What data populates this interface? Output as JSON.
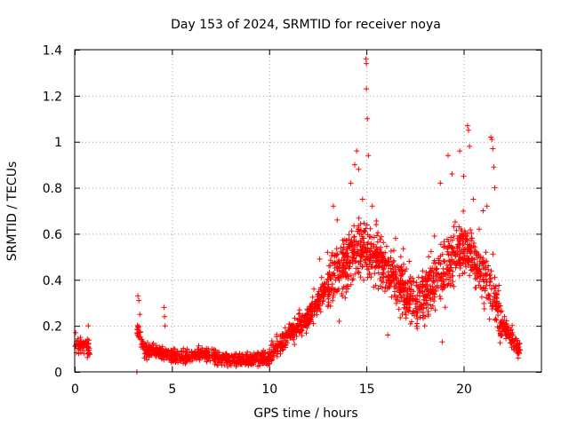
{
  "chart_data": {
    "type": "scatter",
    "title": "Day 153 of 2024, SRMTID for receiver noya",
    "xlabel": "GPS time / hours",
    "ylabel": "SRMTID / TECUs",
    "xlim": [
      0,
      24
    ],
    "ylim": [
      0,
      1.4
    ],
    "x_ticks": [
      0,
      5,
      10,
      15,
      20
    ],
    "x_tick_labels": [
      "0",
      "5",
      "10",
      "15",
      "20"
    ],
    "y_ticks": [
      0,
      0.2,
      0.4,
      0.6,
      0.8,
      1.0,
      1.2,
      1.4
    ],
    "y_tick_labels": [
      "0",
      "0.2",
      "0.4",
      "0.6",
      "0.8",
      "1",
      "1.2",
      "1.4"
    ],
    "grid": true,
    "marker": "+",
    "color": "#ff0000",
    "series": [
      {
        "name": "SRMTID",
        "profile": {
          "note": "Points sampled continuously between these (hour, SRMTID) anchor values; spread is the typical scatter around the profile",
          "segments": [
            {
              "x_start": 0.0,
              "x_end": 0.8,
              "anchors": [
                [
                  0.0,
                  0.12
                ],
                [
                  0.4,
                  0.11
                ],
                [
                  0.8,
                  0.1
                ]
              ],
              "spread": 0.035,
              "count": 60
            },
            {
              "x_start": 3.2,
              "x_end": 10.0,
              "anchors": [
                [
                  3.2,
                  0.2
                ],
                [
                  3.6,
                  0.09
                ],
                [
                  4.5,
                  0.08
                ],
                [
                  5.5,
                  0.06
                ],
                [
                  6.5,
                  0.08
                ],
                [
                  7.5,
                  0.06
                ],
                [
                  8.5,
                  0.05
                ],
                [
                  9.5,
                  0.06
                ],
                [
                  10.0,
                  0.05
                ]
              ],
              "spread": 0.03,
              "count": 650
            },
            {
              "x_start": 10.0,
              "x_end": 13.0,
              "anchors": [
                [
                  10.0,
                  0.07
                ],
                [
                  10.5,
                  0.12
                ],
                [
                  11.0,
                  0.16
                ],
                [
                  11.5,
                  0.2
                ],
                [
                  12.0,
                  0.24
                ],
                [
                  12.5,
                  0.3
                ],
                [
                  13.0,
                  0.38
                ]
              ],
              "spread": 0.05,
              "count": 320
            },
            {
              "x_start": 13.0,
              "x_end": 17.0,
              "anchors": [
                [
                  13.0,
                  0.38
                ],
                [
                  13.5,
                  0.45
                ],
                [
                  14.0,
                  0.48
                ],
                [
                  14.5,
                  0.55
                ],
                [
                  15.0,
                  0.52
                ],
                [
                  15.5,
                  0.5
                ],
                [
                  16.0,
                  0.45
                ],
                [
                  16.5,
                  0.4
                ],
                [
                  17.0,
                  0.35
                ]
              ],
              "spread": 0.12,
              "count": 520
            },
            {
              "x_start": 17.0,
              "x_end": 22.0,
              "anchors": [
                [
                  17.0,
                  0.32
                ],
                [
                  17.5,
                  0.3
                ],
                [
                  18.0,
                  0.34
                ],
                [
                  18.5,
                  0.38
                ],
                [
                  19.0,
                  0.45
                ],
                [
                  19.5,
                  0.5
                ],
                [
                  20.0,
                  0.55
                ],
                [
                  20.5,
                  0.5
                ],
                [
                  21.0,
                  0.42
                ],
                [
                  21.5,
                  0.35
                ],
                [
                  22.0,
                  0.2
                ]
              ],
              "spread": 0.11,
              "count": 600
            },
            {
              "x_start": 22.0,
              "x_end": 22.9,
              "anchors": [
                [
                  22.0,
                  0.2
                ],
                [
                  22.5,
                  0.15
                ],
                [
                  22.9,
                  0.09
                ]
              ],
              "spread": 0.04,
              "count": 90
            }
          ]
        },
        "points": [
          [
            0.05,
            0.17
          ],
          [
            0.3,
            0.15
          ],
          [
            0.7,
            0.2
          ],
          [
            0.75,
            0.08
          ],
          [
            3.2,
            0.0
          ],
          [
            3.25,
            0.33
          ],
          [
            3.3,
            0.31
          ],
          [
            3.35,
            0.25
          ],
          [
            4.6,
            0.28
          ],
          [
            4.62,
            0.24
          ],
          [
            4.65,
            0.2
          ],
          [
            12.3,
            0.36
          ],
          [
            12.6,
            0.49
          ],
          [
            12.7,
            0.41
          ],
          [
            13.0,
            0.52
          ],
          [
            13.3,
            0.72
          ],
          [
            13.5,
            0.66
          ],
          [
            13.6,
            0.22
          ],
          [
            13.8,
            0.52
          ],
          [
            14.2,
            0.82
          ],
          [
            14.4,
            0.9
          ],
          [
            14.5,
            0.96
          ],
          [
            14.6,
            0.88
          ],
          [
            14.8,
            0.75
          ],
          [
            14.98,
            1.36
          ],
          [
            15.0,
            1.34
          ],
          [
            15.0,
            1.23
          ],
          [
            15.05,
            1.1
          ],
          [
            15.1,
            0.94
          ],
          [
            15.3,
            0.72
          ],
          [
            15.5,
            0.64
          ],
          [
            16.1,
            0.16
          ],
          [
            16.5,
            0.58
          ],
          [
            17.2,
            0.48
          ],
          [
            18.0,
            0.2
          ],
          [
            18.2,
            0.5
          ],
          [
            18.5,
            0.59
          ],
          [
            18.8,
            0.82
          ],
          [
            18.9,
            0.13
          ],
          [
            19.2,
            0.94
          ],
          [
            19.4,
            0.86
          ],
          [
            19.8,
            0.96
          ],
          [
            20.0,
            0.85
          ],
          [
            20.2,
            1.07
          ],
          [
            20.25,
            1.05
          ],
          [
            20.3,
            0.98
          ],
          [
            20.5,
            0.75
          ],
          [
            20.8,
            0.62
          ],
          [
            21.0,
            0.7
          ],
          [
            21.2,
            0.72
          ],
          [
            21.4,
            1.02
          ],
          [
            21.45,
            1.01
          ],
          [
            21.5,
            0.97
          ],
          [
            21.55,
            0.89
          ],
          [
            21.6,
            0.8
          ],
          [
            22.1,
            0.24
          ],
          [
            22.4,
            0.18
          ],
          [
            22.6,
            0.1
          ],
          [
            22.8,
            0.06
          ]
        ]
      }
    ]
  }
}
